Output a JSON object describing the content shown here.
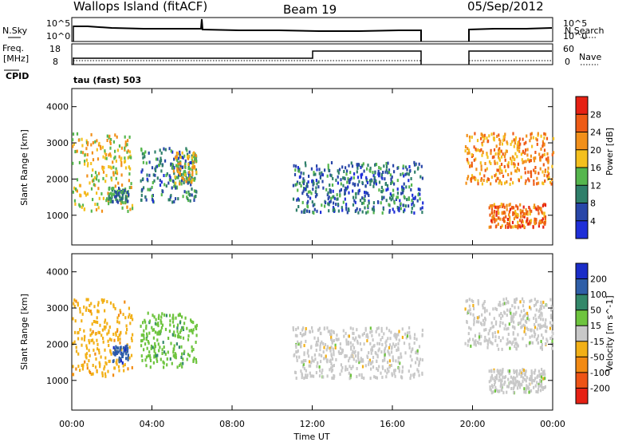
{
  "header": {
    "station": "Wallops Island (fitACF)",
    "beam": "Beam 19",
    "date": "05/Sep/2012"
  },
  "strip_labels": {
    "nsky": "N.Sky",
    "nsearch": "N.Search",
    "freq": "Freq.",
    "freq_unit": "[MHz]",
    "nave": "Nave",
    "cpid": "CPID",
    "cpid_value": "tau (fast) 503"
  },
  "strip_ticks": {
    "noise_left": [
      "10^5",
      "10^0"
    ],
    "noise_right": [
      "10^5",
      "10^0"
    ],
    "freq_left": [
      "18",
      "8"
    ],
    "freq_right": [
      "60",
      "0"
    ]
  },
  "colors": {
    "power": [
      "#1f2fd8",
      "#2846a8",
      "#2f7f6a",
      "#55b64d",
      "#f4c01e",
      "#f2901a",
      "#ee5b16",
      "#e62114"
    ],
    "velocity": [
      "#1a2dc8",
      "#2f5fa8",
      "#33886a",
      "#6ec43e",
      "#c8c8c8",
      "#f2b017",
      "#f28a13",
      "#ee5416",
      "#e62114"
    ]
  },
  "chart_data": [
    {
      "type": "heatmap",
      "title": "",
      "xlabel": "Time UT",
      "ylabel": "Slant Range [km]",
      "x_ticks": [
        "00:00",
        "04:00",
        "08:00",
        "12:00",
        "16:00",
        "20:00",
        "00:00"
      ],
      "xlim_hours": [
        0,
        24
      ],
      "ylim_km": [
        180,
        4500
      ],
      "y_ticks": [
        "1000",
        "2000",
        "3000",
        "4000"
      ],
      "colorbar": {
        "label": "Power [dB]",
        "ticks": [
          "4",
          "8",
          "12",
          "16",
          "20",
          "24",
          "28"
        ],
        "range": [
          0,
          32
        ]
      },
      "data_gap_hours": [
        17.5,
        19.6
      ],
      "regions": [
        {
          "t0": 0.0,
          "t1": 3.0,
          "r0": 1150,
          "r1": 3300,
          "level_db": 18
        },
        {
          "t0": 1.8,
          "t1": 2.8,
          "r0": 1400,
          "r1": 1800,
          "level_db": 10
        },
        {
          "t0": 3.4,
          "t1": 6.2,
          "r0": 1400,
          "r1": 2900,
          "level_db": 9
        },
        {
          "t0": 5.0,
          "t1": 6.2,
          "r0": 1900,
          "r1": 2800,
          "level_db": 18
        },
        {
          "t0": 11.0,
          "t1": 17.5,
          "r0": 1100,
          "r1": 2500,
          "level_db": 8
        },
        {
          "t0": 19.6,
          "t1": 24.0,
          "r0": 1900,
          "r1": 3300,
          "level_db": 22
        },
        {
          "t0": 20.8,
          "t1": 23.6,
          "r0": 700,
          "r1": 1350,
          "level_db": 24
        }
      ]
    },
    {
      "type": "heatmap",
      "title": "",
      "xlabel": "Time UT",
      "ylabel": "Slant Range [km]",
      "x_ticks": [
        "00:00",
        "04:00",
        "08:00",
        "12:00",
        "16:00",
        "20:00",
        "00:00"
      ],
      "xlim_hours": [
        0,
        24
      ],
      "ylim_km": [
        180,
        4500
      ],
      "y_ticks": [
        "1000",
        "2000",
        "3000",
        "4000"
      ],
      "colorbar": {
        "label": "Velocity [m s^-1]",
        "ticks": [
          "200",
          "100",
          "50",
          "15",
          "-15",
          "-50",
          "-100",
          "-200"
        ],
        "range": [
          -250,
          250
        ]
      },
      "data_gap_hours": [
        17.5,
        19.6
      ],
      "regions": [
        {
          "t0": 0.0,
          "t1": 3.0,
          "r0": 1150,
          "r1": 3300,
          "level_ms": -60
        },
        {
          "t0": 2.0,
          "t1": 2.8,
          "r0": 1500,
          "r1": 2000,
          "level_ms": 180
        },
        {
          "t0": 3.4,
          "t1": 6.2,
          "r0": 1400,
          "r1": 2900,
          "level_ms": 60
        },
        {
          "t0": 11.0,
          "t1": 17.5,
          "r0": 1100,
          "r1": 2500,
          "level_ms": 0
        },
        {
          "t0": 19.6,
          "t1": 24.0,
          "r0": 1900,
          "r1": 3300,
          "level_ms": 0
        },
        {
          "t0": 20.8,
          "t1": 23.6,
          "r0": 700,
          "r1": 1350,
          "level_ms": 0
        }
      ]
    }
  ]
}
